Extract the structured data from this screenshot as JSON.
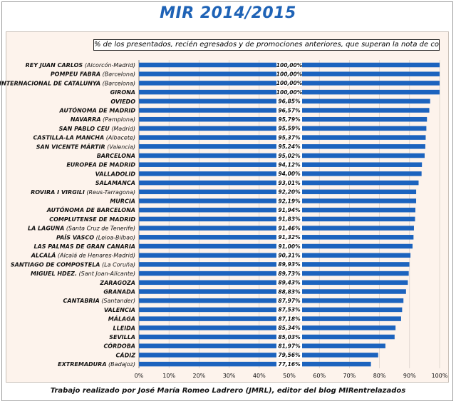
{
  "header": {
    "title": "MIR 2014/2015"
  },
  "footer": {
    "credit": "Trabajo realizado por José María Romeo Ladrero (JMRL), editor del blog MIRentrelazados"
  },
  "colors": {
    "bar": "#1c63be",
    "panel_bg": "#fdf3ec",
    "title": "#1f63b6",
    "grid": "#cfc6bf"
  },
  "chart_data": {
    "type": "bar",
    "orientation": "horizontal",
    "title": "MIR 2014/2015",
    "subtitle": "% de los presentados, recién egresados y de promociones anteriores, que superan la nota de corte",
    "xlabel": "",
    "ylabel": "",
    "xlim": [
      0,
      100
    ],
    "x_ticks": [
      "0%",
      "10%",
      "20%",
      "30%",
      "40%",
      "50%",
      "60%",
      "70%",
      "80%",
      "90%",
      "100%"
    ],
    "legend": "none",
    "categories": [
      {
        "name": "REY JUAN CARLOS",
        "sub": "(Alcorcón-Madrid)"
      },
      {
        "name": "POMPEU FABRA",
        "sub": "(Barcelona)"
      },
      {
        "name": "INTERNACIONAL DE CATALUNYA",
        "sub": "(Barcelona)"
      },
      {
        "name": "GIRONA",
        "sub": ""
      },
      {
        "name": "OVIEDO",
        "sub": ""
      },
      {
        "name": "AUTÓNOMA DE MADRID",
        "sub": ""
      },
      {
        "name": "NAVARRA",
        "sub": "(Pamplona)"
      },
      {
        "name": "SAN PABLO CEU",
        "sub": "(Madrid)"
      },
      {
        "name": "CASTILLA-LA MANCHA",
        "sub": "(Albacete)"
      },
      {
        "name": "SAN VICENTE MÁRTIR",
        "sub": "(Valencia)"
      },
      {
        "name": "BARCELONA",
        "sub": ""
      },
      {
        "name": "EUROPEA DE MADRID",
        "sub": ""
      },
      {
        "name": "VALLADOLID",
        "sub": ""
      },
      {
        "name": "SALAMANCA",
        "sub": ""
      },
      {
        "name": "ROVIRA I VIRGILI",
        "sub": "(Reus-Tarragona)"
      },
      {
        "name": "MURCIA",
        "sub": ""
      },
      {
        "name": "AUTÓNOMA DE BARCELONA",
        "sub": ""
      },
      {
        "name": "COMPLUTENSE DE MADRID",
        "sub": ""
      },
      {
        "name": "LA LAGUNA",
        "sub": "(Santa Cruz de Tenerife)"
      },
      {
        "name": "PAÍS VASCO",
        "sub": "(Leioa-Bilbao)"
      },
      {
        "name": "LAS PALMAS DE GRAN CANARIA",
        "sub": ""
      },
      {
        "name": "ALCALÁ",
        "sub": "(Alcalá de Henares-Madrid)"
      },
      {
        "name": "SANTIAGO DE COMPOSTELA",
        "sub": "(La Coruña)"
      },
      {
        "name": "MIGUEL HDEZ.",
        "sub": "(Sant Joan-Alicante)"
      },
      {
        "name": "ZARAGOZA",
        "sub": ""
      },
      {
        "name": "GRANADA",
        "sub": ""
      },
      {
        "name": "CANTABRIA",
        "sub": "(Santander)"
      },
      {
        "name": "VALENCIA",
        "sub": ""
      },
      {
        "name": "MÁLAGA",
        "sub": ""
      },
      {
        "name": "LLEIDA",
        "sub": ""
      },
      {
        "name": "SEVILLA",
        "sub": ""
      },
      {
        "name": "CÓRDOBA",
        "sub": ""
      },
      {
        "name": "CÁDIZ",
        "sub": ""
      },
      {
        "name": "EXTREMADURA",
        "sub": "(Badajoz)"
      }
    ],
    "values": [
      100.0,
      100.0,
      100.0,
      100.0,
      96.85,
      96.57,
      95.79,
      95.59,
      95.37,
      95.24,
      95.02,
      94.12,
      94.0,
      93.01,
      92.2,
      92.19,
      91.94,
      91.83,
      91.46,
      91.32,
      91.0,
      90.31,
      89.93,
      89.73,
      89.43,
      88.83,
      87.97,
      87.53,
      87.18,
      85.34,
      85.03,
      81.97,
      79.56,
      77.16
    ],
    "value_labels": [
      "100,00%",
      "100,00%",
      "100,00%",
      "100,00%",
      "96,85%",
      "96,57%",
      "95,79%",
      "95,59%",
      "95,37%",
      "95,24%",
      "95,02%",
      "94,12%",
      "94,00%",
      "93,01%",
      "92,20%",
      "92,19%",
      "91,94%",
      "91,83%",
      "91,46%",
      "91,32%",
      "91,00%",
      "90,31%",
      "89,93%",
      "89,73%",
      "89,43%",
      "88,83%",
      "87,97%",
      "87,53%",
      "87,18%",
      "85,34%",
      "85,03%",
      "81,97%",
      "79,56%",
      "77,16%"
    ]
  }
}
